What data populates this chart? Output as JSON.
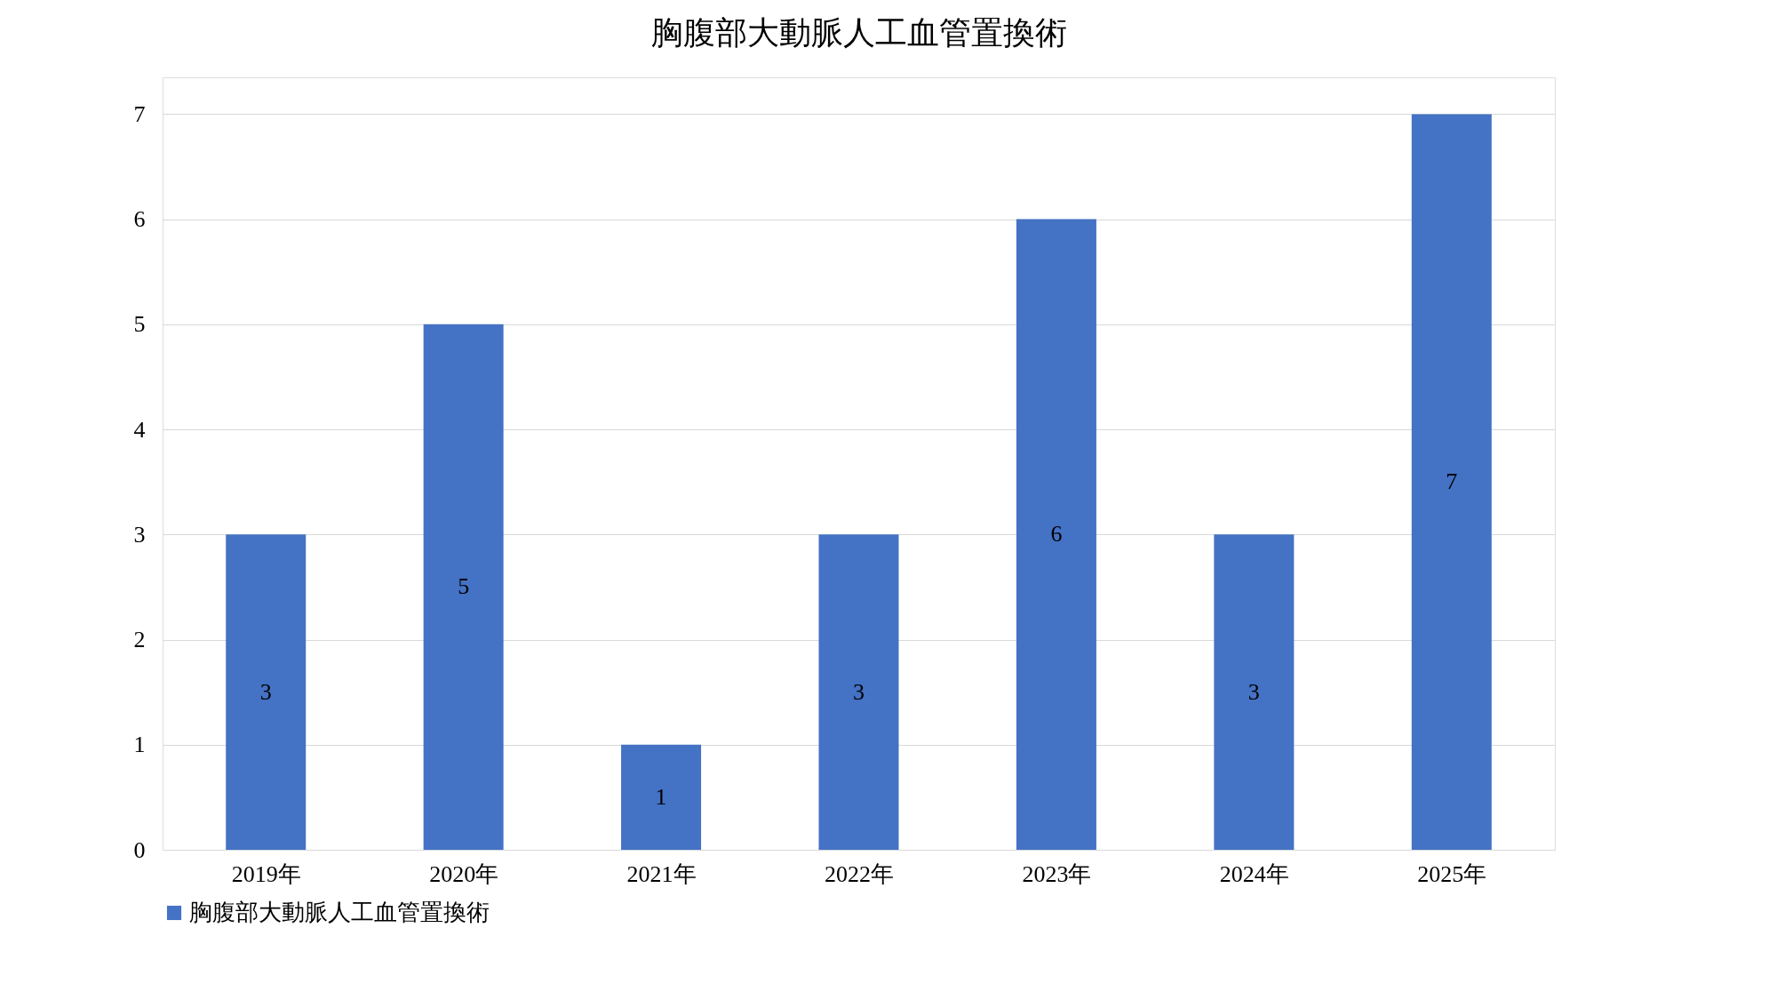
{
  "chart_data": {
    "type": "bar",
    "title": "胸腹部大動脈人工血管置換術",
    "categories": [
      "2019年",
      "2020年",
      "2021年",
      "2022年",
      "2023年",
      "2024年",
      "2025年"
    ],
    "series": [
      {
        "name": "胸腹部大動脈人工血管置換術",
        "color": "#4472c4",
        "values": [
          3,
          5,
          1,
          3,
          6,
          3,
          7
        ]
      }
    ],
    "ylim": [
      0,
      7.35
    ],
    "yticks": [
      0,
      1,
      2,
      3,
      4,
      5,
      6,
      7
    ],
    "grid": "y",
    "legend": "bottom",
    "data_labels": true
  }
}
